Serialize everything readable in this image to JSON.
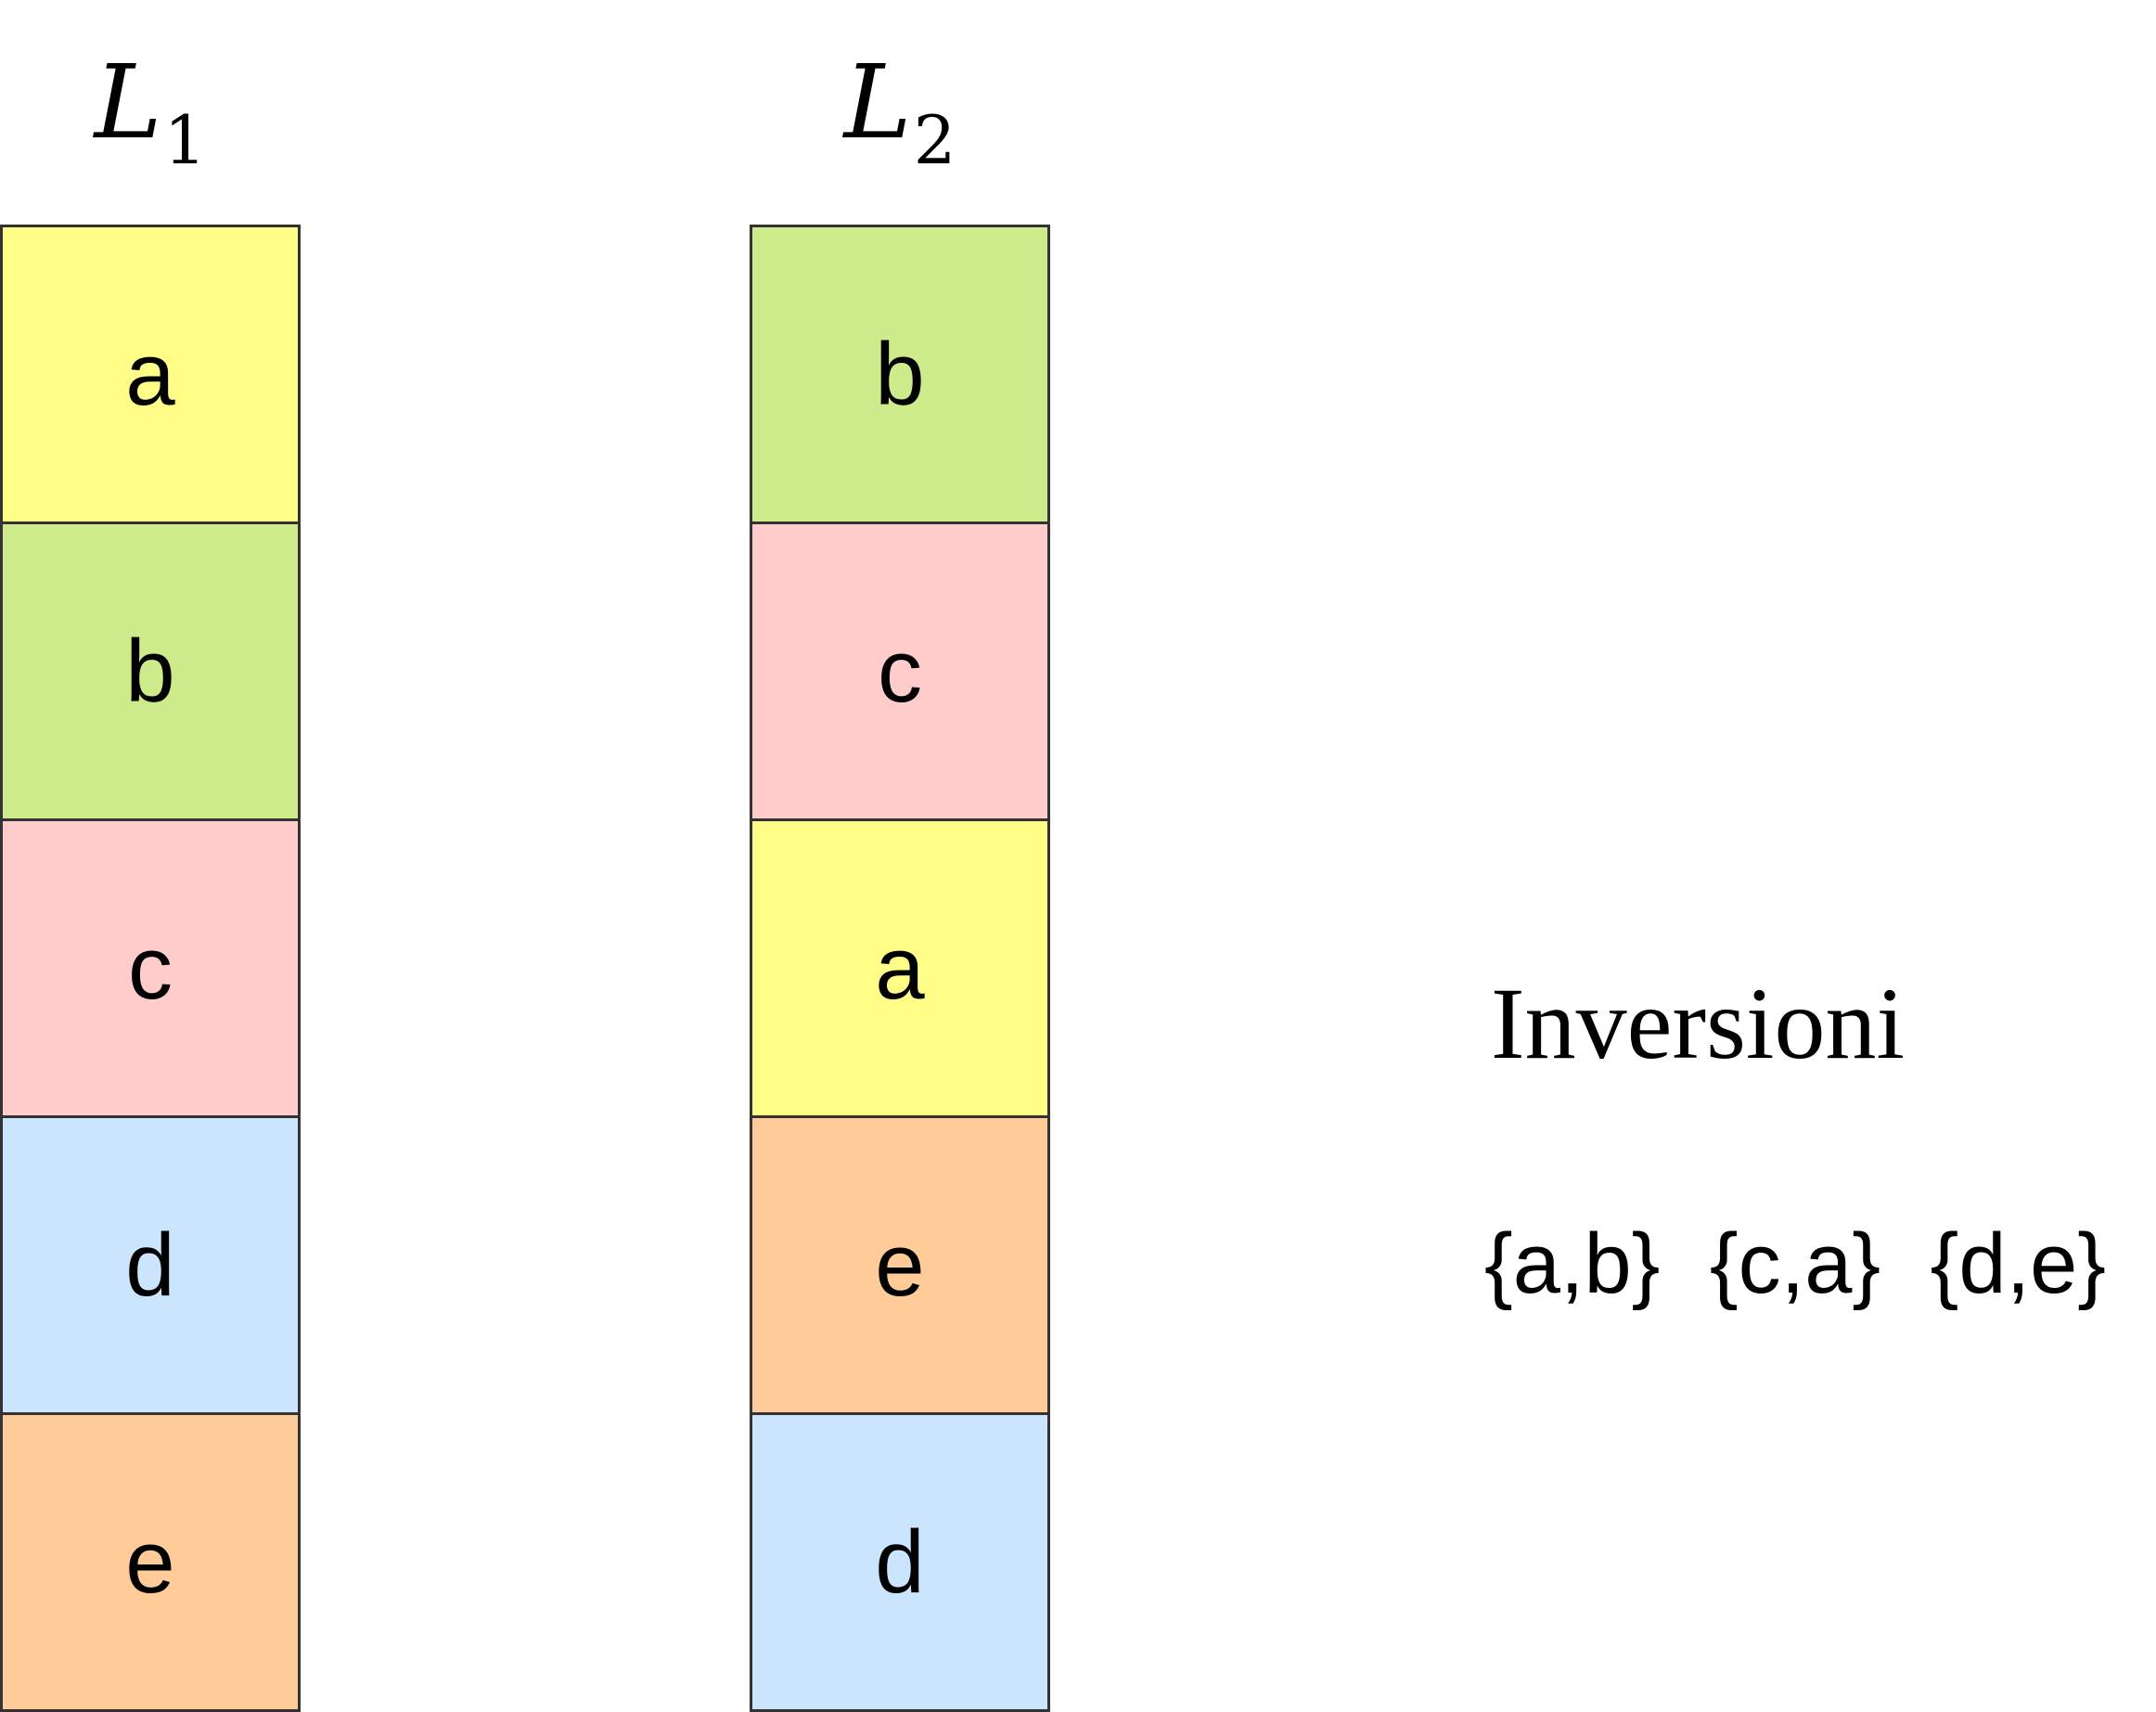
{
  "lists": [
    {
      "label": "L",
      "subscript": "1",
      "items": [
        {
          "text": "a",
          "color": "#FFFF88"
        },
        {
          "text": "b",
          "color": "#CDEB8B"
        },
        {
          "text": "c",
          "color": "#FFCCCC"
        },
        {
          "text": "d",
          "color": "#CCE5FF"
        },
        {
          "text": "e",
          "color": "#FFCC99"
        }
      ]
    },
    {
      "label": "L",
      "subscript": "2",
      "items": [
        {
          "text": "b",
          "color": "#CDEB8B"
        },
        {
          "text": "c",
          "color": "#FFCCCC"
        },
        {
          "text": "a",
          "color": "#FFFF88"
        },
        {
          "text": "e",
          "color": "#FFCC99"
        },
        {
          "text": "d",
          "color": "#CCE5FF"
        }
      ]
    }
  ],
  "inversions": {
    "title": "Inversioni",
    "pairs": [
      "{a,b}",
      "{c,a}",
      "{d,e}"
    ]
  }
}
